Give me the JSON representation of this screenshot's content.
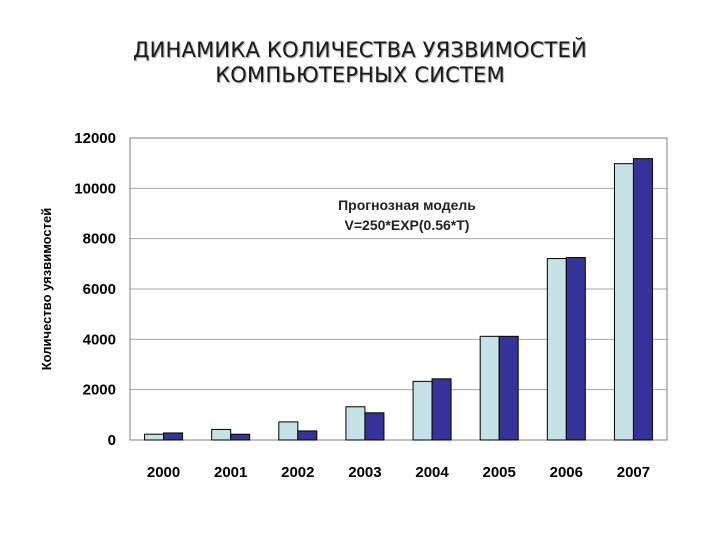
{
  "page": {
    "title_line1": "ДИНАМИКА КОЛИЧЕСТВА УЯЗВИМОСТЕЙ",
    "title_line2": "КОМПЬЮТЕРНЫХ СИСТЕМ"
  },
  "chart_data": {
    "type": "bar",
    "title": "ДИНАМИКА КОЛИЧЕСТВА УЯЗВИМОСТЕЙ КОМПЬЮТЕРНЫХ СИСТЕМ",
    "xlabel": "",
    "ylabel": "Количество уязвимостей",
    "categories": [
      "2000",
      "2001",
      "2002",
      "2003",
      "2004",
      "2005",
      "2006",
      "2007"
    ],
    "ylim": [
      0,
      12000
    ],
    "yticks": [
      0,
      2000,
      4000,
      6000,
      8000,
      10000,
      12000
    ],
    "grid": true,
    "legend": "none",
    "series": [
      {
        "values": [
          230,
          420,
          720,
          1320,
          2330,
          4120,
          7210,
          10980
        ],
        "color": "#c5e3e6"
      },
      {
        "values": [
          280,
          230,
          360,
          1080,
          2430,
          4120,
          7250,
          11180
        ],
        "color": "#333399"
      }
    ],
    "annotation": {
      "line1": "Прогнозная модель",
      "line2": "V=250*EXP(0.56*T)"
    }
  }
}
